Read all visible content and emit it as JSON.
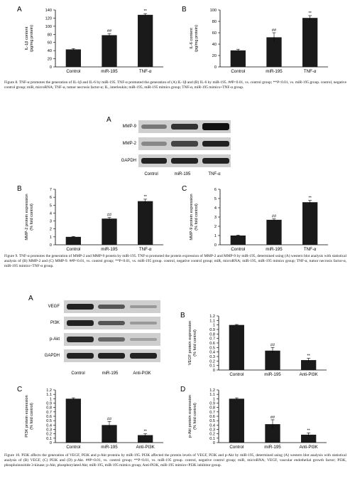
{
  "figure8": {
    "caption": "Figure 8. TNF-α promotes the generation of IL-1β and IL-6 by miR-195. TNF-α promoted the generation of (A) IL-1β and (B) IL-6 by miR-195. ##P<0.01, vs. control group; **P<0.01, vs. miR-195 group. control, negative control group; miR, microRNA; TNF-α, tumor necrosis factor-α; IL, interleukin; miR-195, miR-195 mimics group; TNF-α, miR-195 mimics+TNF-α group."
  },
  "figure9": {
    "caption": "Figure 9. TNF-α promotes the generation of MMP-2 and MMP-9 protein by miR-195. TNF-α promoted the protein expression of MMP-2 and MMP-9 by miR-195, determined using (A) western blot analysis with statistical analysis of (B) MMP-2 and (C) MMP-9. ##P<0.01, vs. control group; **P<0.01, vs. miR-195 group. control, negative control group; miR, microRNA; miR-195, miR-195 mimics group; TNF-α, tumor necrosis factor-α, miR-195 mimics+TNF-α group.",
    "blot": {
      "letter": "A",
      "rows": [
        "MMP-9",
        "MMP-2",
        "GAPDH"
      ],
      "lanes": [
        "Control",
        "miR-195",
        "TNF-α"
      ]
    }
  },
  "figure10": {
    "caption": "Figure 10. PI3K affects the generation of VEGF, PI3K and p-Akt proteins by miR-195. PI3K affected the protein levels of VEGF, PI3K and p-Akt by miR-195, determined using (A) western blot analysis with statistical analysis of (B) VEGF, (C) PI3K and (D) p-Akt. ##P<0.01, vs. control group; **P<0.01, vs. miR-195 group. control, negative control group; miR, microRNA; VEGF, vascular endothelial growth factor; PI3K, phosphoinositide 3-kinase; p-Akt, phosphorylated Akt; miR-195, miR-195 mimics group; Anti-PI3K, miR-195 mimics+PI3K inhibitor group.",
    "blot": {
      "letter": "A",
      "rows": [
        "VEGF",
        "PI3K",
        "p-Akt",
        "GAPDH"
      ],
      "lanes": [
        "Control",
        "miR-195",
        "Anti-PI3K"
      ]
    }
  },
  "chart_data": [
    {
      "id": "f8a",
      "letter": "A",
      "type": "bar",
      "categories": [
        "Control",
        "miR-195",
        "TNF-α"
      ],
      "values": [
        43,
        78,
        128
      ],
      "errors": [
        2,
        4,
        3
      ],
      "marks": [
        "",
        "##",
        "**"
      ],
      "ylabel": "IL-1β content (pg/mg protein)",
      "ylim": [
        0,
        140
      ],
      "yticks": [
        0,
        20,
        40,
        60,
        80,
        100,
        120,
        140
      ]
    },
    {
      "id": "f8b",
      "letter": "B",
      "type": "bar",
      "categories": [
        "Control",
        "miR-195",
        "TNF-α"
      ],
      "values": [
        29,
        52,
        86
      ],
      "errors": [
        2,
        8,
        4
      ],
      "marks": [
        "",
        "##",
        "**"
      ],
      "ylabel": "IL-6 content (pg/mg protein)",
      "ylim": [
        0,
        100
      ],
      "yticks": [
        0,
        20,
        40,
        60,
        80,
        100
      ]
    },
    {
      "id": "f9b",
      "letter": "B",
      "type": "bar",
      "categories": [
        "Control",
        "miR-195",
        "TNF-α"
      ],
      "values": [
        1.0,
        3.3,
        5.5
      ],
      "errors": [
        0.05,
        0.15,
        0.25
      ],
      "marks": [
        "",
        "##",
        "**"
      ],
      "ylabel": "MMP-2 protein expression (% fold control)",
      "ylim": [
        0,
        7
      ],
      "yticks": [
        0,
        1,
        2,
        3,
        4,
        5,
        6,
        7
      ]
    },
    {
      "id": "f9c",
      "letter": "C",
      "type": "bar",
      "categories": [
        "Control",
        "miR-195",
        "TNF-α"
      ],
      "values": [
        1.0,
        2.7,
        4.6
      ],
      "errors": [
        0.05,
        0.1,
        0.2
      ],
      "marks": [
        "",
        "##",
        "**"
      ],
      "ylabel": "MMP-9 protein expression (% fold control)",
      "ylim": [
        0,
        6
      ],
      "yticks": [
        0,
        1,
        2,
        3,
        4,
        5,
        6
      ]
    },
    {
      "id": "f10b",
      "letter": "B",
      "type": "bar",
      "categories": [
        "Control",
        "miR-195",
        "Anti-PI3K"
      ],
      "values": [
        1.0,
        0.43,
        0.22
      ],
      "errors": [
        0.01,
        0.07,
        0.04
      ],
      "marks": [
        "",
        "##",
        "**"
      ],
      "ylabel": "VEGF protein expression (% fold control)",
      "ylim": [
        0,
        1.2
      ],
      "yticks": [
        0,
        0.1,
        0.2,
        0.3,
        0.4,
        0.5,
        0.6,
        0.7,
        0.8,
        0.9,
        1.0,
        1.1,
        1.2
      ],
      "ytick_labels": [
        "0",
        "0.1",
        "0.2",
        "0.3",
        "0.4",
        "0.5",
        "0.6",
        "0.7",
        "0.8",
        "0.9",
        "1",
        "1.1",
        "1.2"
      ]
    },
    {
      "id": "f10c",
      "letter": "C",
      "type": "bar",
      "categories": [
        "Control",
        "miR-195",
        "Anti-PI3K"
      ],
      "values": [
        1.0,
        0.4,
        0.17
      ],
      "errors": [
        0.02,
        0.08,
        0.03
      ],
      "marks": [
        "",
        "##",
        "**"
      ],
      "ylabel": "PI3K protein expression (% fold control)",
      "ylim": [
        0,
        1.2
      ],
      "yticks": [
        0,
        0.1,
        0.2,
        0.3,
        0.4,
        0.5,
        0.6,
        0.7,
        0.8,
        0.9,
        1.0,
        1.1,
        1.2
      ],
      "ytick_labels": [
        "0",
        "0.1",
        "0.2",
        "0.3",
        "0.4",
        "0.5",
        "0.6",
        "0.7",
        "0.8",
        "0.9",
        "1",
        "1.1",
        "1.2"
      ]
    },
    {
      "id": "f10d",
      "letter": "D",
      "type": "bar",
      "categories": [
        "Control",
        "miR-195",
        "Anti-PI3K"
      ],
      "values": [
        1.0,
        0.42,
        0.18
      ],
      "errors": [
        0.02,
        0.1,
        0.04
      ],
      "marks": [
        "",
        "##",
        "**"
      ],
      "ylabel": "p-Akt protein expression (% fold control)",
      "ylim": [
        0,
        1.2
      ],
      "yticks": [
        0,
        0.1,
        0.2,
        0.3,
        0.4,
        0.5,
        0.6,
        0.7,
        0.8,
        0.9,
        1.0,
        1.1,
        1.2
      ],
      "ytick_labels": [
        "0",
        "0.1",
        "0.2",
        "0.3",
        "0.4",
        "0.5",
        "0.6",
        "0.7",
        "0.8",
        "0.9",
        "1",
        "1.1",
        "1.2"
      ]
    }
  ]
}
